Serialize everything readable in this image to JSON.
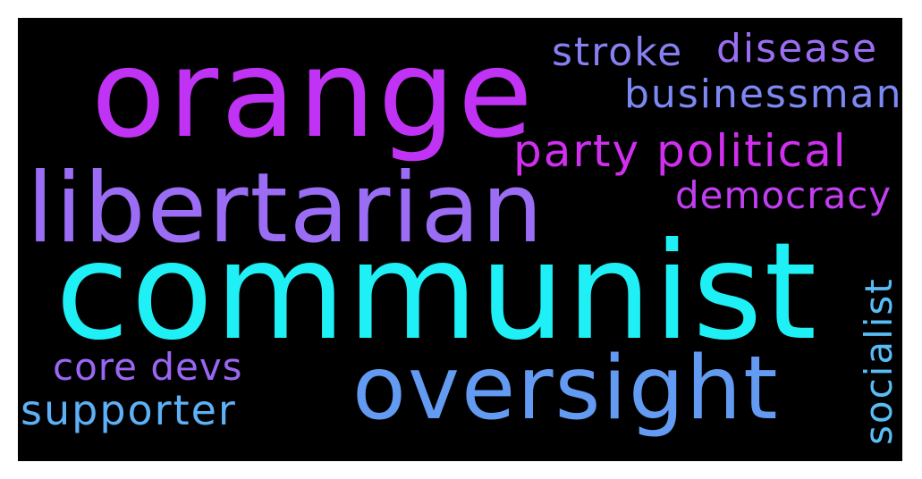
{
  "words": {
    "communist": {
      "text": "communist",
      "color": "#1ff0f6"
    },
    "orange": {
      "text": "orange",
      "color": "#c033f4"
    },
    "libertarian": {
      "text": "libertarian",
      "color": "#9a6df4"
    },
    "oversight": {
      "text": "oversight",
      "color": "#639af2"
    },
    "party": {
      "text": "party political",
      "color": "#d12ff0"
    },
    "businessman": {
      "text": "businessman",
      "color": "#7d88f4"
    },
    "stroke": {
      "text": "stroke",
      "color": "#8680f2"
    },
    "disease": {
      "text": "disease",
      "color": "#9a6ef2"
    },
    "democracy": {
      "text": "democracy",
      "color": "#c23ef1"
    },
    "coredevs": {
      "text": "core devs",
      "color": "#9b66f3"
    },
    "supporter": {
      "text": "supporter",
      "color": "#5db1f6"
    },
    "socialist": {
      "text": "socialist",
      "color": "#58bdf5"
    }
  }
}
